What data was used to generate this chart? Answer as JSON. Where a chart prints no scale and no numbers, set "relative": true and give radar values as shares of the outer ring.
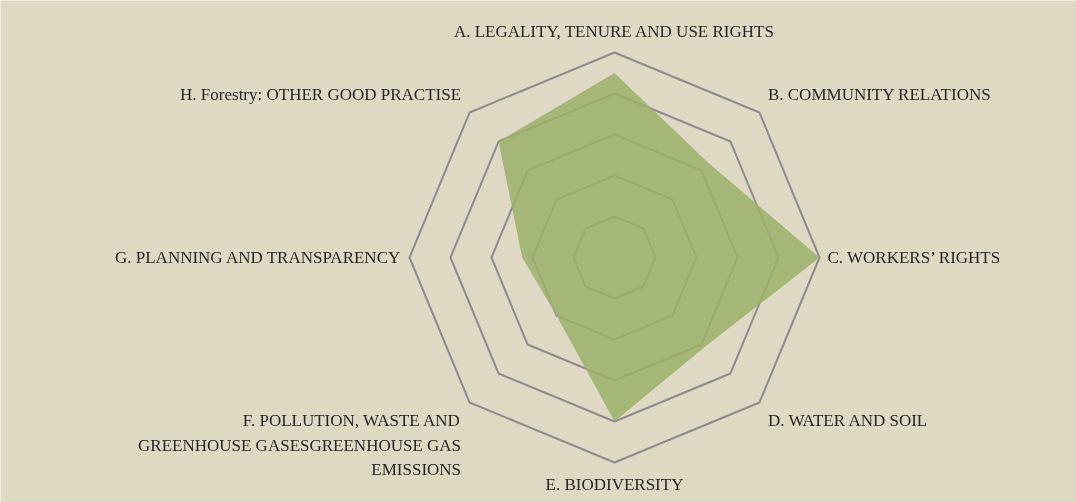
{
  "chart_data": {
    "type": "radar",
    "relative": true,
    "grid": true,
    "categories": [
      "A. LEGALITY, TENURE AND USE RIGHTS",
      "B. COMMUNITY RELATIONS",
      "C. WORKERS’ RIGHTS",
      "D. WATER AND SOIL",
      "E. BIODIVERSITY",
      "F. POLLUTION, WASTE AND GREENHOUSE GASESGREENHOUSE GAS EMISSIONS",
      "G. PLANNING AND TRANSPARENCY",
      "H. Forestry: OTHER GOOD PRACTISE"
    ],
    "series": [
      {
        "type": "area",
        "color": "#9bb069",
        "values": [
          0.9,
          0.65,
          1.0,
          0.62,
          0.8,
          0.4,
          0.45,
          0.8
        ]
      }
    ]
  }
}
